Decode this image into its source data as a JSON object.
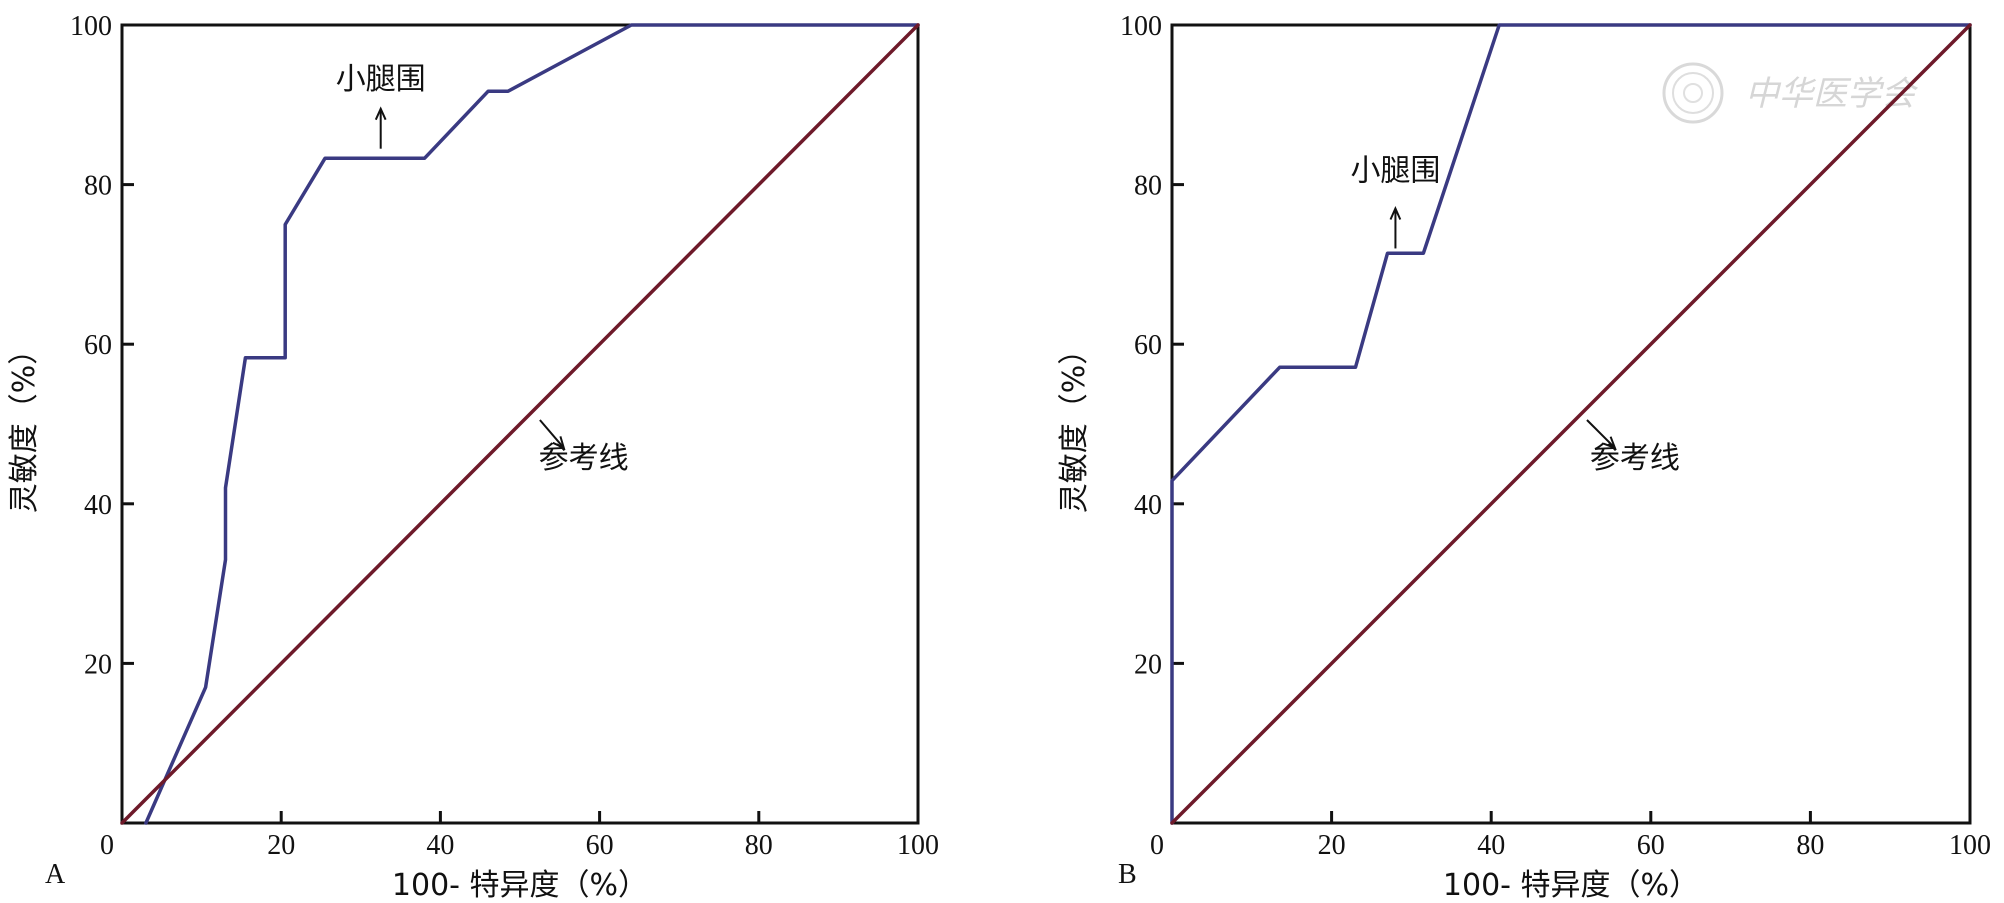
{
  "figure": {
    "watermark_text": "中华医学会",
    "watermark_icon": "society-seal-icon",
    "colors": {
      "roc_curve": "#3a3a82",
      "reference_line": "#6e1a2a",
      "frame": "#111111"
    }
  },
  "chart_data": [
    {
      "type": "line",
      "panel": "A",
      "xlabel": "100- 特异度（%）",
      "ylabel": "灵敏度（%）",
      "xlim": [
        0,
        100
      ],
      "ylim": [
        0,
        100
      ],
      "xticks": [
        "0",
        "20",
        "40",
        "60",
        "80",
        "100"
      ],
      "yticks": [
        "20",
        "40",
        "60",
        "80",
        "100"
      ],
      "grid": false,
      "series": [
        {
          "name": "小腿围",
          "x": [
            3,
            10.5,
            13,
            13,
            15.5,
            20.5,
            20.5,
            25.5,
            38,
            46,
            48.5,
            64,
            100
          ],
          "y": [
            0,
            17,
            33,
            42,
            58.3,
            58.3,
            75,
            83.3,
            83.3,
            91.7,
            91.7,
            100,
            100
          ]
        },
        {
          "name": "参考线",
          "x": [
            0,
            100
          ],
          "y": [
            0,
            100
          ]
        }
      ],
      "annotations": [
        {
          "text": "小腿围",
          "arrow": "up",
          "text_x": 32.5,
          "text_y": 92,
          "arrow_from": [
            32.5,
            84.5
          ],
          "arrow_to": [
            32.5,
            89.5
          ]
        },
        {
          "text": "参考线",
          "arrow": "down-right",
          "text_x": 58,
          "text_y": 44.5,
          "arrow_from": [
            52.5,
            50.5
          ],
          "arrow_to": [
            55.5,
            47
          ]
        }
      ]
    },
    {
      "type": "line",
      "panel": "B",
      "xlabel": "100- 特异度（%）",
      "ylabel": "灵敏度（%）",
      "xlim": [
        0,
        100
      ],
      "ylim": [
        0,
        100
      ],
      "xticks": [
        "0",
        "20",
        "40",
        "60",
        "80",
        "100"
      ],
      "yticks": [
        "20",
        "40",
        "60",
        "80",
        "100"
      ],
      "grid": false,
      "series": [
        {
          "name": "小腿围",
          "x": [
            0,
            0,
            13.5,
            23,
            27,
            31.5,
            41,
            100
          ],
          "y": [
            0,
            42.9,
            57.1,
            57.1,
            71.4,
            71.4,
            100,
            100
          ]
        },
        {
          "name": "参考线",
          "x": [
            0,
            100
          ],
          "y": [
            0,
            100
          ]
        }
      ],
      "annotations": [
        {
          "text": "小腿围",
          "arrow": "up",
          "text_x": 28,
          "text_y": 80.5,
          "arrow_from": [
            28,
            72
          ],
          "arrow_to": [
            28,
            77
          ]
        },
        {
          "text": "参考线",
          "arrow": "down-right",
          "text_x": 58,
          "text_y": 44.5,
          "arrow_from": [
            52,
            50.5
          ],
          "arrow_to": [
            55.5,
            47
          ]
        }
      ]
    }
  ]
}
